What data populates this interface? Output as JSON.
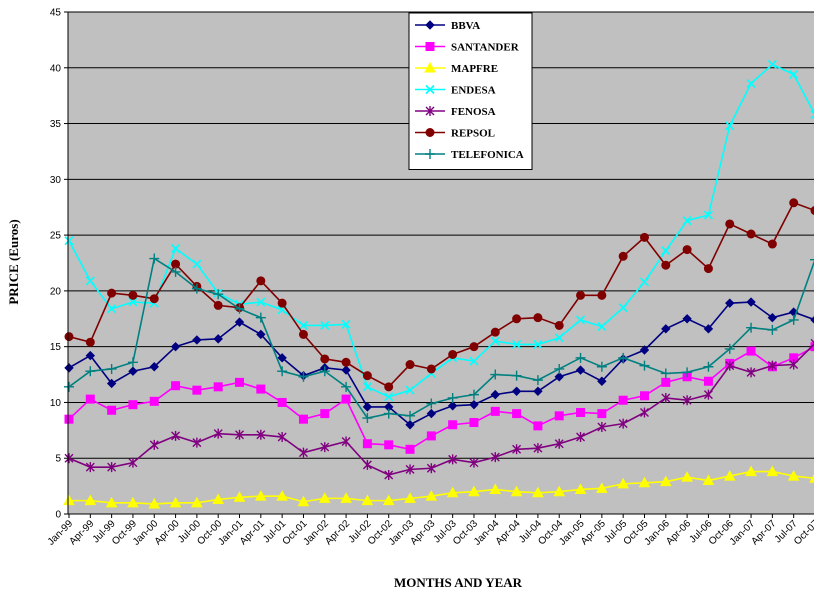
{
  "chart_data": {
    "type": "line",
    "xlabel": "MONTHS AND YEAR",
    "ylabel": "PRICE (Euros)",
    "ylim": [
      0,
      45
    ],
    "yticks": [
      0,
      5,
      10,
      15,
      20,
      25,
      30,
      35,
      40,
      45
    ],
    "grid": "horizontal",
    "legend_position": "top-center",
    "plot_background": "#c0c0c0",
    "categories": [
      "Jan-99",
      "Apr-99",
      "Jul-99",
      "Oct-99",
      "Jan-00",
      "Apr-00",
      "Jul-00",
      "Oct-00",
      "Jan-01",
      "Apr-01",
      "Jul-01",
      "Oct-01",
      "Jan-02",
      "Apr-02",
      "Jul-02",
      "Oct-02",
      "Jan-03",
      "Apr-03",
      "Jul-03",
      "Oct-03",
      "Jan-04",
      "Apr-04",
      "Jul-04",
      "Oct-04",
      "Jan-05",
      "Apr-05",
      "Jul-05",
      "Oct-05",
      "Jan-06",
      "Apr-06",
      "Jul-06",
      "Oct-06",
      "Jan-07",
      "Apr-07",
      "Jul-07",
      "Oct-07"
    ],
    "series": [
      {
        "name": "BBVA",
        "color": "#000080",
        "marker": "diamond",
        "values": [
          13.1,
          14.2,
          11.7,
          12.8,
          13.2,
          15.0,
          15.6,
          15.7,
          17.2,
          16.1,
          14.0,
          12.4,
          13.1,
          12.9,
          9.6,
          9.6,
          8.0,
          9.0,
          9.7,
          9.8,
          10.7,
          11.0,
          11.0,
          12.3,
          12.9,
          11.9,
          13.9,
          14.7,
          16.6,
          17.5,
          16.6,
          18.9,
          19.0,
          17.6,
          18.1,
          17.4
        ]
      },
      {
        "name": "SANTANDER",
        "color": "#ff00ff",
        "marker": "square",
        "values": [
          8.5,
          10.3,
          9.3,
          9.8,
          10.1,
          11.5,
          11.1,
          11.4,
          11.8,
          11.2,
          10.0,
          8.5,
          9.0,
          10.3,
          6.3,
          6.2,
          5.8,
          7.0,
          8.0,
          8.2,
          9.2,
          9.0,
          7.9,
          8.8,
          9.1,
          9.0,
          10.2,
          10.6,
          11.8,
          12.3,
          11.9,
          13.5,
          14.6,
          13.2,
          14.0,
          15.0
        ]
      },
      {
        "name": "MAPFRE",
        "color": "#ffff00",
        "marker": "triangle",
        "values": [
          1.2,
          1.2,
          1.0,
          1.0,
          0.9,
          1.0,
          1.0,
          1.3,
          1.5,
          1.6,
          1.6,
          1.1,
          1.4,
          1.4,
          1.2,
          1.2,
          1.4,
          1.6,
          1.9,
          2.0,
          2.2,
          2.0,
          1.9,
          2.0,
          2.2,
          2.3,
          2.7,
          2.8,
          2.9,
          3.3,
          3.0,
          3.4,
          3.8,
          3.8,
          3.4,
          3.2
        ]
      },
      {
        "name": "ENDESA",
        "color": "#00ffff",
        "marker": "x",
        "values": [
          24.5,
          20.9,
          18.4,
          19.0,
          18.9,
          23.8,
          22.4,
          19.8,
          18.8,
          19.0,
          18.3,
          16.9,
          16.9,
          17.0,
          11.4,
          10.5,
          11.1,
          12.6,
          14.0,
          13.7,
          15.5,
          15.2,
          15.2,
          15.8,
          17.4,
          16.8,
          18.5,
          20.8,
          23.6,
          26.3,
          26.8,
          34.8,
          38.6,
          40.3,
          39.4,
          35.8
        ]
      },
      {
        "name": "FENOSA",
        "color": "#800080",
        "marker": "star",
        "values": [
          5.0,
          4.2,
          4.2,
          4.6,
          6.2,
          7.0,
          6.4,
          7.2,
          7.1,
          7.1,
          6.9,
          5.5,
          6.0,
          6.5,
          4.4,
          3.5,
          4.0,
          4.1,
          4.9,
          4.6,
          5.1,
          5.8,
          5.9,
          6.3,
          6.9,
          7.8,
          8.1,
          9.1,
          10.4,
          10.2,
          10.7,
          13.3,
          12.7,
          13.3,
          13.4,
          15.3
        ]
      },
      {
        "name": "REPSOL",
        "color": "#800000",
        "marker": "circle",
        "values": [
          15.9,
          15.4,
          19.8,
          19.6,
          19.3,
          22.4,
          20.4,
          18.7,
          18.5,
          20.9,
          18.9,
          16.1,
          13.9,
          13.6,
          12.4,
          11.4,
          13.4,
          13.0,
          14.3,
          15.0,
          16.3,
          17.5,
          17.6,
          16.9,
          19.6,
          19.6,
          23.1,
          24.8,
          22.3,
          23.7,
          22.0,
          26.0,
          25.1,
          24.2,
          27.9,
          27.2
        ]
      },
      {
        "name": "TELEFONICA",
        "color": "#008080",
        "marker": "plus",
        "values": [
          11.4,
          12.8,
          13.0,
          13.6,
          22.9,
          21.7,
          20.2,
          19.7,
          18.4,
          17.6,
          12.8,
          12.3,
          12.8,
          11.4,
          8.6,
          9.0,
          8.8,
          9.9,
          10.4,
          10.7,
          12.5,
          12.4,
          12.0,
          13.0,
          14.0,
          13.2,
          14.0,
          13.3,
          12.6,
          12.7,
          13.2,
          14.8,
          16.7,
          16.5,
          17.4,
          22.8
        ]
      }
    ]
  }
}
